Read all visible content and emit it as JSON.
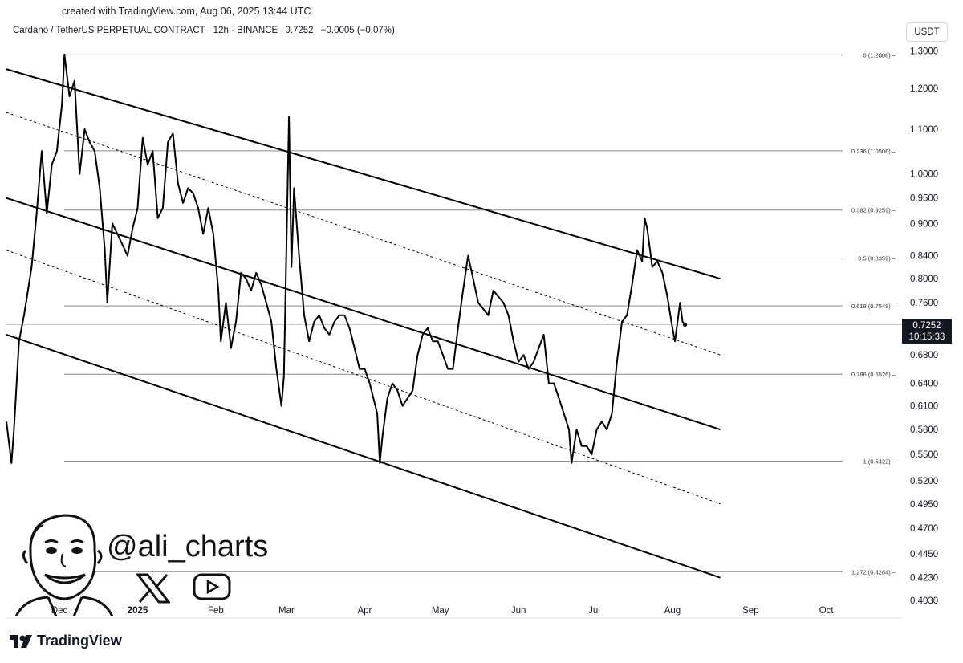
{
  "header": {
    "created_text": "created with TradingView.com, Aug 06, 2025 13:44 UTC",
    "symbol": "Cardano / TetherUS PERPETUAL CONTRACT · 12h · BINANCE",
    "last": "0.7252",
    "change": "−0.0005 (−0.07%)",
    "currency": "USDT"
  },
  "price_badge": {
    "price": "0.7252",
    "countdown": "10:15:33"
  },
  "watermark": {
    "handle": "@ali_charts"
  },
  "brand": {
    "name": "TradingView"
  },
  "colors": {
    "line": "#000000",
    "grid": "#bfbfbf",
    "badge_bg": "#131722"
  },
  "chart_data": {
    "type": "line",
    "title": "Cardano / TetherUS PERPETUAL CONTRACT · 12h · BINANCE",
    "y_scale": "log",
    "ylim": [
      0.403,
      1.33
    ],
    "y_ticks": [
      "1.3000",
      "1.2000",
      "1.1000",
      "1.0000",
      "0.9500",
      "0.9000",
      "0.8400",
      "0.8000",
      "0.7600",
      "0.6800",
      "0.6400",
      "0.6100",
      "0.5800",
      "0.5500",
      "0.5200",
      "0.4950",
      "0.4700",
      "0.4450",
      "0.4230",
      "0.4030"
    ],
    "x_labels": [
      "Dec",
      "2025",
      "Feb",
      "Mar",
      "Apr",
      "May",
      "Jun",
      "Jul",
      "Aug",
      "Sep",
      "Oct"
    ],
    "x_label_dates": [
      "2024-12-01",
      "2025-01-01",
      "2025-02-01",
      "2025-03-01",
      "2025-04-01",
      "2025-05-01",
      "2025-06-01",
      "2025-07-01",
      "2025-08-01",
      "2025-09-01",
      "2025-10-01"
    ],
    "xlim": [
      "2024-11-10",
      "2025-10-31"
    ],
    "fib_levels": [
      {
        "label": "0 (1.2888)",
        "value": 1.2888
      },
      {
        "label": "0.236 (1.0506)",
        "value": 1.0506
      },
      {
        "label": "0.382 (0.9259)",
        "value": 0.9259
      },
      {
        "label": "0.5 (0.8359)",
        "value": 0.8359
      },
      {
        "label": "0.618 (0.7548)",
        "value": 0.7548
      },
      {
        "label": "0.786 (0.6526)",
        "value": 0.6526
      },
      {
        "label": "1 (0.5422)",
        "value": 0.5422
      },
      {
        "label": "1.272 (0.4284)",
        "value": 0.4284
      }
    ],
    "channel_lines": [
      {
        "style": "solid",
        "points": [
          [
            "2024-11-10",
            1.25
          ],
          [
            "2025-08-20",
            0.8
          ]
        ]
      },
      {
        "style": "solid",
        "points": [
          [
            "2024-11-10",
            0.95
          ],
          [
            "2025-08-20",
            0.58
          ]
        ]
      },
      {
        "style": "solid",
        "points": [
          [
            "2024-11-10",
            0.71
          ],
          [
            "2025-08-20",
            0.423
          ]
        ]
      },
      {
        "style": "dashed",
        "points": [
          [
            "2024-11-10",
            1.14
          ],
          [
            "2025-08-20",
            0.68
          ]
        ]
      },
      {
        "style": "dashed",
        "points": [
          [
            "2024-11-10",
            0.85
          ],
          [
            "2025-08-20",
            0.495
          ]
        ]
      }
    ],
    "series": [
      {
        "values": [
          [
            "2024-11-10",
            0.59
          ],
          [
            "2024-11-12",
            0.54
          ],
          [
            "2024-11-13",
            0.58
          ],
          [
            "2024-11-15",
            0.7
          ],
          [
            "2024-11-17",
            0.74
          ],
          [
            "2024-11-20",
            0.82
          ],
          [
            "2024-11-22",
            0.92
          ],
          [
            "2024-11-24",
            1.05
          ],
          [
            "2024-11-26",
            0.92
          ],
          [
            "2024-11-28",
            1.02
          ],
          [
            "2024-11-30",
            1.05
          ],
          [
            "2024-12-02",
            1.16
          ],
          [
            "2024-12-03",
            1.29
          ],
          [
            "2024-12-05",
            1.18
          ],
          [
            "2024-12-07",
            1.22
          ],
          [
            "2024-12-09",
            1.0
          ],
          [
            "2024-12-11",
            1.1
          ],
          [
            "2024-12-13",
            1.07
          ],
          [
            "2024-12-15",
            1.05
          ],
          [
            "2024-12-17",
            0.97
          ],
          [
            "2024-12-19",
            0.85
          ],
          [
            "2024-12-20",
            0.76
          ],
          [
            "2024-12-22",
            0.9
          ],
          [
            "2024-12-24",
            0.88
          ],
          [
            "2024-12-26",
            0.86
          ],
          [
            "2024-12-28",
            0.84
          ],
          [
            "2024-12-30",
            0.89
          ],
          [
            "2025-01-01",
            0.93
          ],
          [
            "2025-01-03",
            1.08
          ],
          [
            "2025-01-05",
            1.02
          ],
          [
            "2025-01-07",
            1.05
          ],
          [
            "2025-01-09",
            0.91
          ],
          [
            "2025-01-11",
            0.93
          ],
          [
            "2025-01-13",
            1.07
          ],
          [
            "2025-01-15",
            1.09
          ],
          [
            "2025-01-17",
            0.98
          ],
          [
            "2025-01-19",
            0.94
          ],
          [
            "2025-01-21",
            0.97
          ],
          [
            "2025-01-23",
            0.96
          ],
          [
            "2025-01-25",
            0.93
          ],
          [
            "2025-01-27",
            0.88
          ],
          [
            "2025-01-29",
            0.93
          ],
          [
            "2025-01-31",
            0.88
          ],
          [
            "2025-02-02",
            0.78
          ],
          [
            "2025-02-03",
            0.7
          ],
          [
            "2025-02-05",
            0.76
          ],
          [
            "2025-02-07",
            0.69
          ],
          [
            "2025-02-09",
            0.73
          ],
          [
            "2025-02-11",
            0.81
          ],
          [
            "2025-02-13",
            0.8
          ],
          [
            "2025-02-15",
            0.78
          ],
          [
            "2025-02-17",
            0.81
          ],
          [
            "2025-02-19",
            0.79
          ],
          [
            "2025-02-21",
            0.76
          ],
          [
            "2025-02-23",
            0.73
          ],
          [
            "2025-02-25",
            0.66
          ],
          [
            "2025-02-27",
            0.61
          ],
          [
            "2025-02-28",
            0.65
          ],
          [
            "2025-03-02",
            1.13
          ],
          [
            "2025-03-03",
            0.82
          ],
          [
            "2025-03-04",
            0.97
          ],
          [
            "2025-03-06",
            0.84
          ],
          [
            "2025-03-08",
            0.74
          ],
          [
            "2025-03-10",
            0.7
          ],
          [
            "2025-03-12",
            0.73
          ],
          [
            "2025-03-14",
            0.74
          ],
          [
            "2025-03-16",
            0.72
          ],
          [
            "2025-03-18",
            0.71
          ],
          [
            "2025-03-20",
            0.73
          ],
          [
            "2025-03-22",
            0.74
          ],
          [
            "2025-03-24",
            0.74
          ],
          [
            "2025-03-26",
            0.72
          ],
          [
            "2025-03-28",
            0.69
          ],
          [
            "2025-03-30",
            0.66
          ],
          [
            "2025-04-01",
            0.66
          ],
          [
            "2025-04-03",
            0.64
          ],
          [
            "2025-04-06",
            0.6
          ],
          [
            "2025-04-07",
            0.54
          ],
          [
            "2025-04-08",
            0.57
          ],
          [
            "2025-04-10",
            0.62
          ],
          [
            "2025-04-12",
            0.64
          ],
          [
            "2025-04-14",
            0.63
          ],
          [
            "2025-04-16",
            0.61
          ],
          [
            "2025-04-18",
            0.62
          ],
          [
            "2025-04-20",
            0.63
          ],
          [
            "2025-04-22",
            0.68
          ],
          [
            "2025-04-24",
            0.71
          ],
          [
            "2025-04-26",
            0.72
          ],
          [
            "2025-04-28",
            0.7
          ],
          [
            "2025-04-30",
            0.7
          ],
          [
            "2025-05-02",
            0.68
          ],
          [
            "2025-05-04",
            0.66
          ],
          [
            "2025-05-06",
            0.66
          ],
          [
            "2025-05-08",
            0.72
          ],
          [
            "2025-05-10",
            0.78
          ],
          [
            "2025-05-12",
            0.84
          ],
          [
            "2025-05-14",
            0.8
          ],
          [
            "2025-05-16",
            0.76
          ],
          [
            "2025-05-18",
            0.75
          ],
          [
            "2025-05-20",
            0.74
          ],
          [
            "2025-05-22",
            0.78
          ],
          [
            "2025-05-24",
            0.77
          ],
          [
            "2025-05-26",
            0.76
          ],
          [
            "2025-05-28",
            0.74
          ],
          [
            "2025-05-30",
            0.7
          ],
          [
            "2025-06-01",
            0.67
          ],
          [
            "2025-06-03",
            0.68
          ],
          [
            "2025-06-05",
            0.66
          ],
          [
            "2025-06-07",
            0.67
          ],
          [
            "2025-06-09",
            0.69
          ],
          [
            "2025-06-11",
            0.71
          ],
          [
            "2025-06-13",
            0.64
          ],
          [
            "2025-06-15",
            0.64
          ],
          [
            "2025-06-17",
            0.62
          ],
          [
            "2025-06-19",
            0.6
          ],
          [
            "2025-06-21",
            0.58
          ],
          [
            "2025-06-22",
            0.54
          ],
          [
            "2025-06-24",
            0.58
          ],
          [
            "2025-06-26",
            0.56
          ],
          [
            "2025-06-28",
            0.56
          ],
          [
            "2025-06-30",
            0.55
          ],
          [
            "2025-07-02",
            0.58
          ],
          [
            "2025-07-04",
            0.59
          ],
          [
            "2025-07-06",
            0.58
          ],
          [
            "2025-07-08",
            0.6
          ],
          [
            "2025-07-10",
            0.67
          ],
          [
            "2025-07-12",
            0.73
          ],
          [
            "2025-07-14",
            0.74
          ],
          [
            "2025-07-16",
            0.79
          ],
          [
            "2025-07-18",
            0.85
          ],
          [
            "2025-07-20",
            0.83
          ],
          [
            "2025-07-21",
            0.91
          ],
          [
            "2025-07-22",
            0.89
          ],
          [
            "2025-07-24",
            0.82
          ],
          [
            "2025-07-26",
            0.83
          ],
          [
            "2025-07-28",
            0.81
          ],
          [
            "2025-07-30",
            0.77
          ],
          [
            "2025-08-01",
            0.72
          ],
          [
            "2025-08-02",
            0.7
          ],
          [
            "2025-08-04",
            0.76
          ],
          [
            "2025-08-05",
            0.73
          ],
          [
            "2025-08-06",
            0.7252
          ]
        ]
      }
    ]
  }
}
